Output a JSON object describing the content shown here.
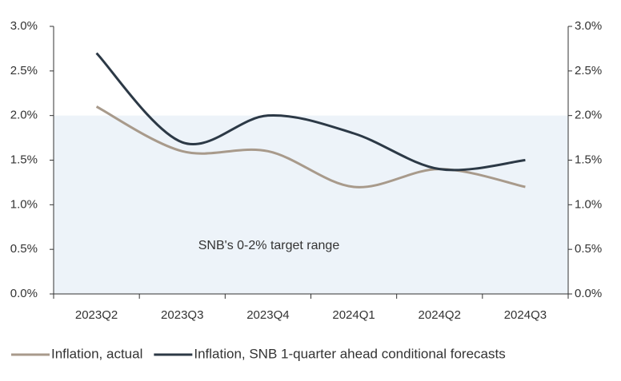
{
  "chart_data": {
    "type": "line",
    "categories": [
      "2023Q2",
      "2023Q3",
      "2023Q4",
      "2024Q1",
      "2024Q2",
      "2024Q3"
    ],
    "series": [
      {
        "name": "Inflation, actual",
        "color": "#a89a8b",
        "values": [
          2.1,
          1.6,
          1.6,
          1.2,
          1.4,
          1.2
        ]
      },
      {
        "name": "Inflation, SNB 1-quarter ahead conditional forecasts",
        "color": "#2c3946",
        "values": [
          2.7,
          1.7,
          2.0,
          1.8,
          1.4,
          1.5
        ]
      }
    ],
    "ylim": [
      0,
      3
    ],
    "yticks": [
      {
        "value": 0,
        "label": "0.0%"
      },
      {
        "value": 0.5,
        "label": "0.5%"
      },
      {
        "value": 1,
        "label": "1.0%"
      },
      {
        "value": 1.5,
        "label": "1.5%"
      },
      {
        "value": 2,
        "label": "2.0%"
      },
      {
        "value": 2.5,
        "label": "2.5%"
      },
      {
        "value": 3,
        "label": "3.0%"
      }
    ],
    "y2lim": [
      0,
      3
    ],
    "y2ticks": [
      {
        "value": 0,
        "label": "0.0%"
      },
      {
        "value": 0.5,
        "label": "0.5%"
      },
      {
        "value": 1,
        "label": "1.0%"
      },
      {
        "value": 1.5,
        "label": "1.5%"
      },
      {
        "value": 2,
        "label": "2.0%"
      },
      {
        "value": 2.5,
        "label": "2.5%"
      },
      {
        "value": 3,
        "label": "3.0%"
      }
    ],
    "target_range": {
      "values": [
        0,
        2
      ],
      "color": "#edf3f9",
      "label": "SNB's 0-2% target range"
    },
    "legend": "bottom"
  }
}
